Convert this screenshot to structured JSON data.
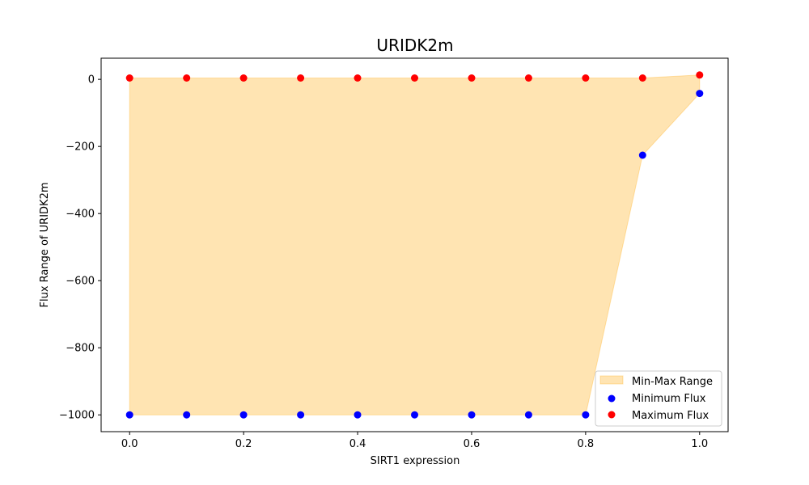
{
  "chart_data": {
    "type": "scatter",
    "title": "URIDK2m",
    "xlabel": "SIRT1 expression",
    "ylabel": "Flux Range of URIDK2m",
    "xlim": [
      -0.05,
      1.05
    ],
    "ylim": [
      -1050,
      63
    ],
    "x_ticks": [
      0.0,
      0.2,
      0.4,
      0.6,
      0.8,
      1.0
    ],
    "x_tick_labels": [
      "0.0",
      "0.2",
      "0.4",
      "0.6",
      "0.8",
      "1.0"
    ],
    "y_ticks": [
      0,
      -200,
      -400,
      -600,
      -800,
      -1000
    ],
    "y_tick_labels": [
      "0",
      "−200",
      "−400",
      "−600",
      "−800",
      "−1000"
    ],
    "grid": false,
    "legend_position": "lower-right",
    "x": [
      0.0,
      0.1,
      0.2,
      0.3,
      0.4,
      0.5,
      0.6,
      0.7,
      0.8,
      0.9,
      1.0
    ],
    "series": [
      {
        "name": "Minimum Flux",
        "kind": "scatter",
        "color": "#0000ff",
        "values": [
          -1000,
          -1000,
          -1000,
          -1000,
          -1000,
          -1000,
          -1000,
          -1000,
          -1000,
          -226,
          -42
        ]
      },
      {
        "name": "Maximum Flux",
        "kind": "scatter",
        "color": "#ff0000",
        "values": [
          4,
          4,
          4,
          4,
          4,
          4,
          4,
          4,
          4,
          4,
          13
        ]
      }
    ],
    "fill": {
      "name": "Min-Max Range",
      "color": "#ffa500",
      "alpha": 0.3
    }
  }
}
